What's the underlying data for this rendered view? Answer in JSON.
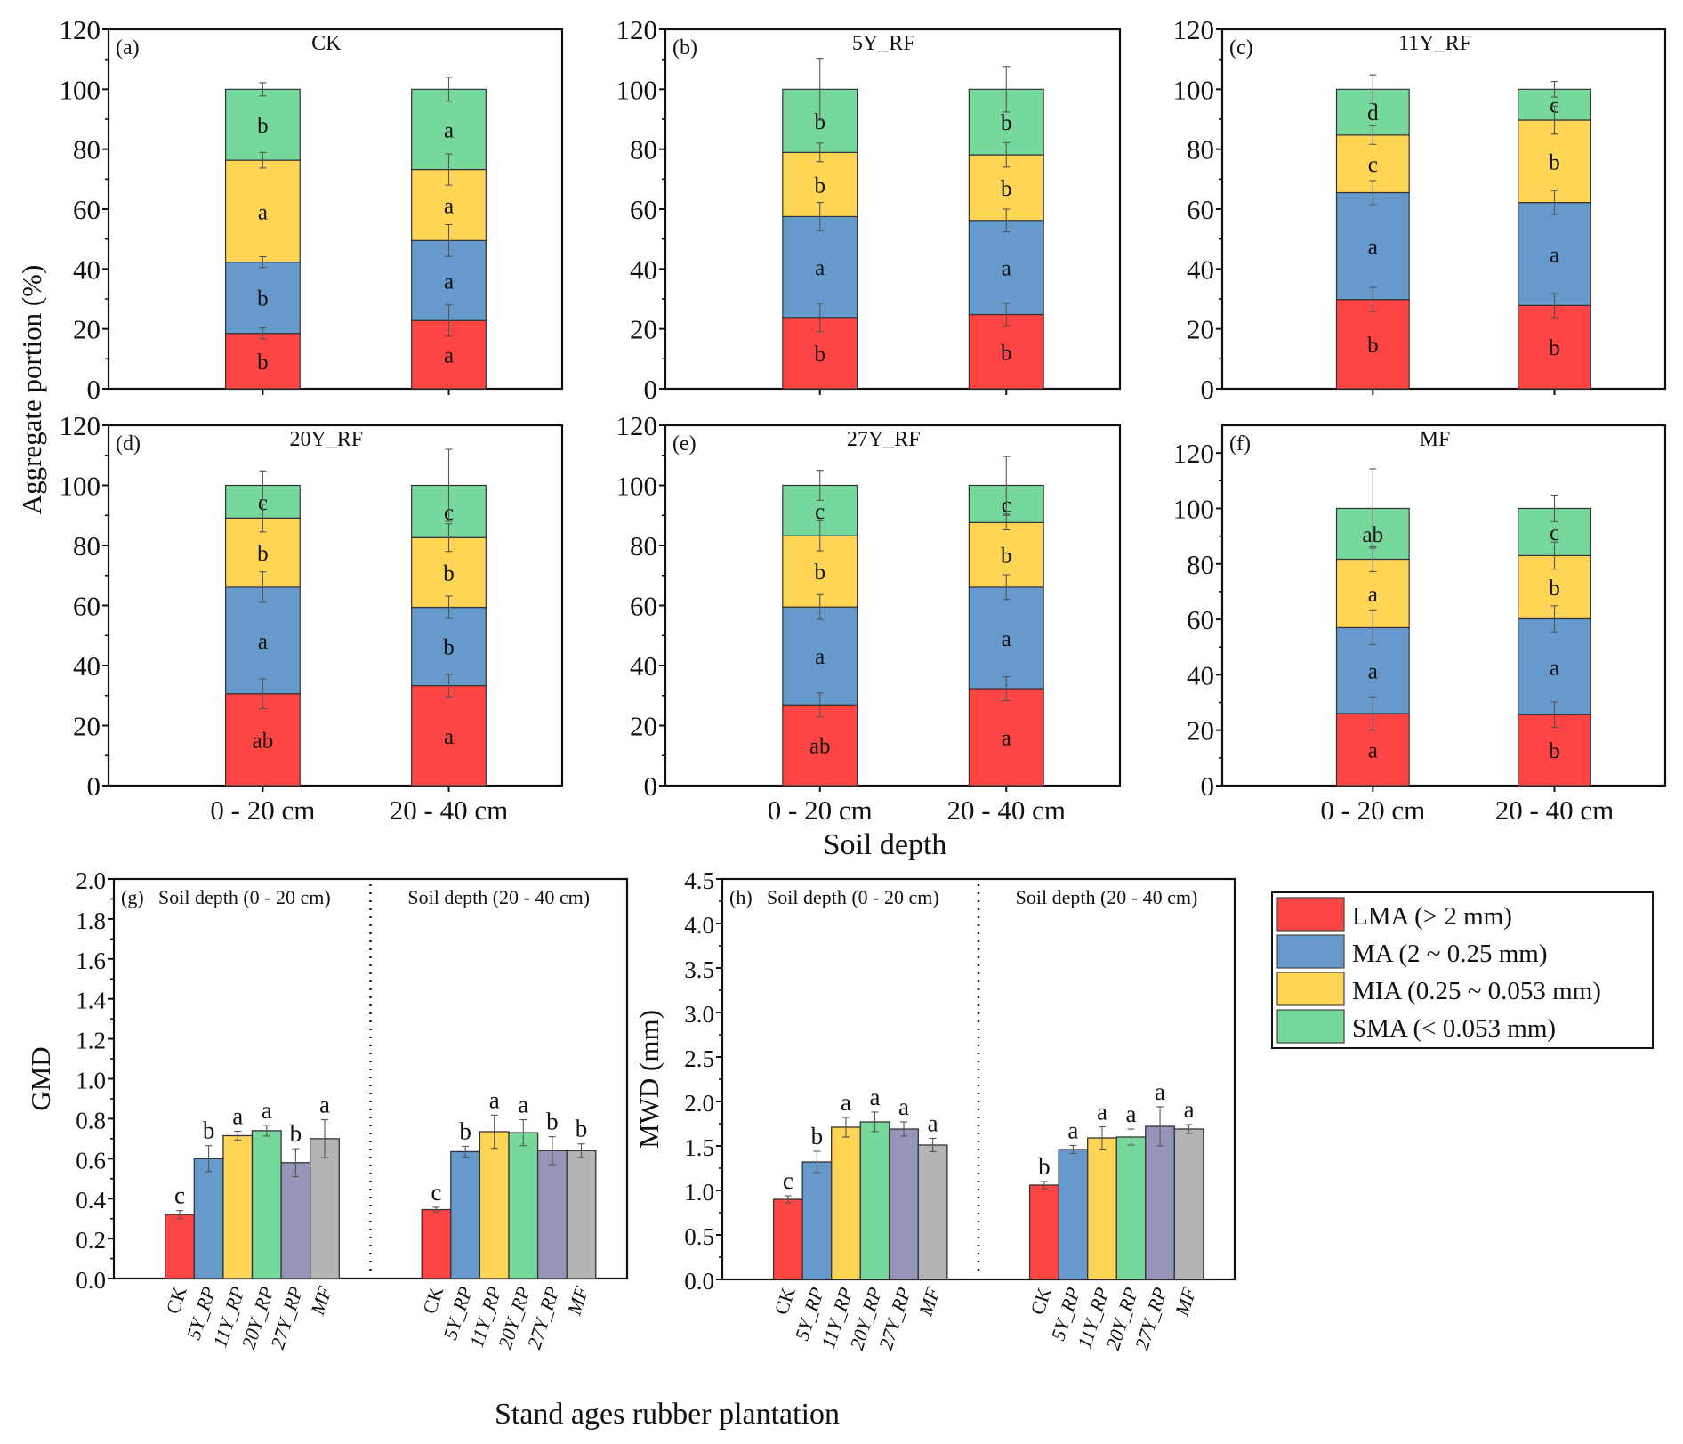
{
  "figure": {
    "shared_ylabel": "Aggregate portion (%)",
    "shared_xlabel_top": "Soil depth",
    "shared_xlabel_bottom": "Stand ages rubber plantation"
  },
  "legend": {
    "items": [
      {
        "key": "LMA",
        "label": "LMA (> 2 mm)",
        "color": "#FF4444"
      },
      {
        "key": "MA",
        "label": "MA (2 ~ 0.25 mm)",
        "color": "#6699CC"
      },
      {
        "key": "MIA",
        "label": "MIA (0.25 ~ 0.053 mm)",
        "color": "#FFD556"
      },
      {
        "key": "SMA",
        "label": "SMA (< 0.053 mm)",
        "color": "#77D89C"
      }
    ]
  },
  "chart_data": [
    {
      "id": "a",
      "type": "bar",
      "stacked": true,
      "panel_label": "(a)",
      "title": "CK",
      "categories": [
        "0 - 20 cm",
        "20 - 40 cm"
      ],
      "ylim": [
        0,
        120
      ],
      "yticks": [
        0,
        20,
        40,
        60,
        80,
        100,
        120
      ],
      "series": [
        {
          "name": "LMA",
          "values": [
            18.5,
            22.8
          ],
          "errors": [
            1.8,
            5.2
          ],
          "letters": [
            "b",
            "a"
          ]
        },
        {
          "name": "MA",
          "values": [
            23.8,
            26.7
          ],
          "errors": [
            1.8,
            5.3
          ],
          "letters": [
            "b",
            "a"
          ]
        },
        {
          "name": "MIA",
          "values": [
            34.0,
            23.7
          ],
          "errors": [
            2.6,
            5.2
          ],
          "letters": [
            "a",
            "a"
          ]
        },
        {
          "name": "SMA",
          "values": [
            23.7,
            26.8
          ],
          "errors": [
            2.2,
            4.0
          ],
          "letters": [
            "b",
            "a"
          ]
        }
      ]
    },
    {
      "id": "b",
      "type": "bar",
      "stacked": true,
      "panel_label": "(b)",
      "title": "5Y_RF",
      "categories": [
        "0 - 20 cm",
        "20 - 40 cm"
      ],
      "ylim": [
        0,
        120
      ],
      "yticks": [
        0,
        20,
        40,
        60,
        80,
        100,
        120
      ],
      "series": [
        {
          "name": "LMA",
          "values": [
            23.8,
            24.8
          ],
          "errors": [
            4.7,
            3.7
          ],
          "letters": [
            "b",
            "b"
          ]
        },
        {
          "name": "MA",
          "values": [
            33.7,
            31.4
          ],
          "errors": [
            4.7,
            3.8
          ],
          "letters": [
            "a",
            "a"
          ]
        },
        {
          "name": "MIA",
          "values": [
            21.4,
            21.9
          ],
          "errors": [
            3.1,
            4.1
          ],
          "letters": [
            "b",
            "b"
          ]
        },
        {
          "name": "SMA",
          "values": [
            21.1,
            21.9
          ],
          "errors": [
            10.3,
            7.6
          ],
          "letters": [
            "b",
            "b"
          ]
        }
      ]
    },
    {
      "id": "c",
      "type": "bar",
      "stacked": true,
      "panel_label": "(c)",
      "title": "11Y_RF",
      "categories": [
        "0 - 20 cm",
        "20 - 40 cm"
      ],
      "ylim": [
        0,
        120
      ],
      "yticks": [
        0,
        20,
        40,
        60,
        80,
        100,
        120
      ],
      "series": [
        {
          "name": "LMA",
          "values": [
            29.8,
            27.8
          ],
          "errors": [
            4.0,
            4.0
          ],
          "letters": [
            "b",
            "b"
          ]
        },
        {
          "name": "MA",
          "values": [
            35.7,
            34.4
          ],
          "errors": [
            4.0,
            4.0
          ],
          "letters": [
            "a",
            "a"
          ]
        },
        {
          "name": "MIA",
          "values": [
            19.2,
            27.5
          ],
          "errors": [
            3.1,
            4.7
          ],
          "letters": [
            "c",
            "b"
          ]
        },
        {
          "name": "SMA",
          "values": [
            15.3,
            10.3
          ],
          "errors": [
            4.8,
            2.6
          ],
          "letters": [
            "d",
            "c"
          ]
        }
      ]
    },
    {
      "id": "d",
      "type": "bar",
      "stacked": true,
      "panel_label": "(d)",
      "title": "20Y_RF",
      "categories": [
        "0 - 20 cm",
        "20 - 40 cm"
      ],
      "ylim": [
        0,
        120
      ],
      "yticks": [
        0,
        20,
        40,
        60,
        80,
        100,
        120
      ],
      "series": [
        {
          "name": "LMA",
          "values": [
            30.6,
            33.3
          ],
          "errors": [
            5.0,
            3.7
          ],
          "letters": [
            "ab",
            "a"
          ]
        },
        {
          "name": "MA",
          "values": [
            35.5,
            26.1
          ],
          "errors": [
            5.1,
            3.7
          ],
          "letters": [
            "a",
            "b"
          ]
        },
        {
          "name": "MIA",
          "values": [
            23.0,
            23.2
          ],
          "errors": [
            4.6,
            4.6
          ],
          "letters": [
            "b",
            "b"
          ]
        },
        {
          "name": "SMA",
          "values": [
            10.9,
            17.4
          ],
          "errors": [
            4.8,
            12.0
          ],
          "letters": [
            "c",
            "c"
          ]
        }
      ]
    },
    {
      "id": "e",
      "type": "bar",
      "stacked": true,
      "panel_label": "(e)",
      "title": "27Y_RF",
      "categories": [
        "0 - 20 cm",
        "20 - 40 cm"
      ],
      "ylim": [
        0,
        120
      ],
      "yticks": [
        0,
        20,
        40,
        60,
        80,
        100,
        120
      ],
      "series": [
        {
          "name": "LMA",
          "values": [
            26.9,
            32.3
          ],
          "errors": [
            4.0,
            4.0
          ],
          "letters": [
            "ab",
            "a"
          ]
        },
        {
          "name": "MA",
          "values": [
            32.6,
            33.8
          ],
          "errors": [
            4.1,
            4.1
          ],
          "letters": [
            "a",
            "a"
          ]
        },
        {
          "name": "MIA",
          "values": [
            23.7,
            21.5
          ],
          "errors": [
            5.0,
            2.4
          ],
          "letters": [
            "b",
            "b"
          ]
        },
        {
          "name": "SMA",
          "values": [
            16.8,
            12.4
          ],
          "errors": [
            5.0,
            9.6
          ],
          "letters": [
            "c",
            "c"
          ]
        }
      ]
    },
    {
      "id": "f",
      "type": "bar",
      "stacked": true,
      "panel_label": "(f)",
      "title": "MF",
      "categories": [
        "0 - 20 cm",
        "20 - 40 cm"
      ],
      "ylim": [
        0,
        130
      ],
      "yticks": [
        0,
        20,
        40,
        60,
        80,
        100,
        120
      ],
      "series": [
        {
          "name": "LMA",
          "values": [
            26.0,
            25.6
          ],
          "errors": [
            6.0,
            4.6
          ],
          "letters": [
            "a",
            "b"
          ]
        },
        {
          "name": "MA",
          "values": [
            31.0,
            34.6
          ],
          "errors": [
            6.1,
            4.7
          ],
          "letters": [
            "a",
            "a"
          ]
        },
        {
          "name": "MIA",
          "values": [
            24.7,
            22.8
          ],
          "errors": [
            4.5,
            4.9
          ],
          "letters": [
            "a",
            "b"
          ]
        },
        {
          "name": "SMA",
          "values": [
            18.3,
            17.0
          ],
          "errors": [
            14.3,
            4.8
          ],
          "letters": [
            "ab",
            "c"
          ]
        }
      ]
    },
    {
      "id": "g",
      "type": "bar",
      "stacked": false,
      "panel_label": "(g)",
      "ylabel": "GMD",
      "group_labels": [
        "Soil depth (0 - 20 cm)",
        "Soil depth (20 - 40 cm)"
      ],
      "categories": [
        "CK",
        "5Y_RP",
        "11Y_RP",
        "20Y_RP",
        "27Y_RP",
        "MF"
      ],
      "colors": [
        "#FF4444",
        "#6699CC",
        "#FFD556",
        "#77D89C",
        "#9595B9",
        "#B4B4B4"
      ],
      "ylim": [
        0,
        2.0
      ],
      "yticks": [
        0.0,
        0.2,
        0.4,
        0.6,
        0.8,
        1.0,
        1.2,
        1.4,
        1.6,
        1.8,
        2.0
      ],
      "series": [
        {
          "name": "Soil depth (0 - 20 cm)",
          "values": [
            0.32,
            0.6,
            0.715,
            0.74,
            0.58,
            0.7
          ],
          "errors": [
            0.02,
            0.065,
            0.022,
            0.027,
            0.07,
            0.095
          ],
          "letters": [
            "c",
            "b",
            "a",
            "a",
            "b",
            "a"
          ]
        },
        {
          "name": "Soil depth (20 - 40 cm)",
          "values": [
            0.345,
            0.635,
            0.735,
            0.73,
            0.64,
            0.64
          ],
          "errors": [
            0.012,
            0.027,
            0.083,
            0.065,
            0.07,
            0.034
          ],
          "letters": [
            "c",
            "b",
            "a",
            "a",
            "b",
            "b"
          ]
        }
      ]
    },
    {
      "id": "h",
      "type": "bar",
      "stacked": false,
      "panel_label": "(h)",
      "ylabel": "MWD (mm)",
      "group_labels": [
        "Soil depth (0 - 20 cm)",
        "Soil depth (20 - 40 cm)"
      ],
      "categories": [
        "CK",
        "5Y_RP",
        "11Y_RP",
        "20Y_RP",
        "27Y_RP",
        "MF"
      ],
      "colors": [
        "#FF4444",
        "#6699CC",
        "#FFD556",
        "#77D89C",
        "#9595B9",
        "#B4B4B4"
      ],
      "ylim": [
        0,
        4.5
      ],
      "yticks": [
        0.0,
        0.5,
        1.0,
        1.5,
        2.0,
        2.5,
        3.0,
        3.5,
        4.0,
        4.5
      ],
      "series": [
        {
          "name": "Soil depth (0 - 20 cm)",
          "values": [
            0.9,
            1.32,
            1.71,
            1.77,
            1.69,
            1.51
          ],
          "errors": [
            0.04,
            0.12,
            0.11,
            0.11,
            0.08,
            0.075
          ],
          "letters": [
            "c",
            "b",
            "a",
            "a",
            "a",
            "a"
          ]
        },
        {
          "name": "Soil depth (20 - 40 cm)",
          "values": [
            1.06,
            1.46,
            1.59,
            1.6,
            1.72,
            1.69
          ],
          "errors": [
            0.04,
            0.045,
            0.125,
            0.09,
            0.22,
            0.05
          ],
          "letters": [
            "b",
            "a",
            "a",
            "a",
            "a",
            "a"
          ]
        }
      ]
    }
  ]
}
